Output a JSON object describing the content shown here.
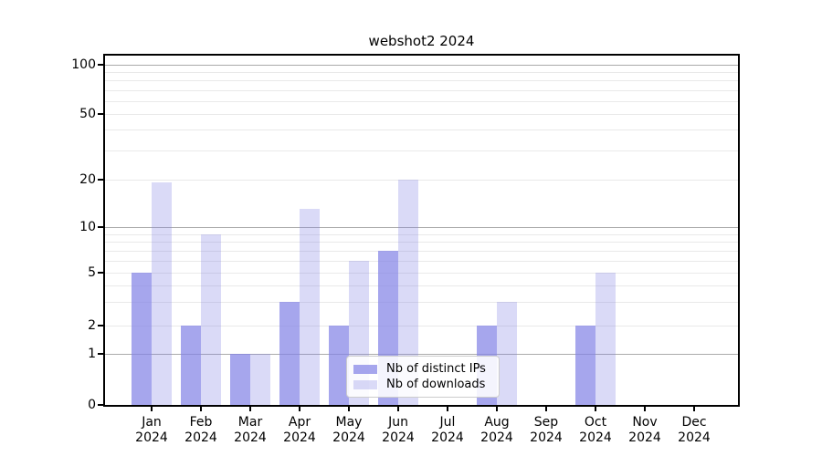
{
  "chart_data": {
    "type": "bar",
    "title": "webshot2 2024",
    "categories": [
      "Jan",
      "Feb",
      "Mar",
      "Apr",
      "May",
      "Jun",
      "Jul",
      "Aug",
      "Sep",
      "Oct",
      "Nov",
      "Dec"
    ],
    "tick_year": "2024",
    "series": [
      {
        "name": "Nb of distinct IPs",
        "color": "rgba(131,131,230,0.72)",
        "values": [
          5,
          2,
          1,
          3,
          2,
          7,
          0,
          2,
          0,
          2,
          0,
          0
        ]
      },
      {
        "name": "Nb of downloads",
        "color": "rgba(131,131,230,0.30)",
        "values": [
          19,
          9,
          1,
          13,
          6,
          20,
          0,
          3,
          0,
          5,
          0,
          0
        ]
      }
    ],
    "xlabel": "",
    "ylabel": "",
    "yticks": [
      0,
      1,
      2,
      5,
      10,
      20,
      50,
      100
    ],
    "ylim": [
      0,
      100
    ],
    "yscale": "symlog-like",
    "grid": true,
    "major_gridlines": [
      1,
      10,
      100
    ],
    "minor_gridlines": [
      2,
      3,
      4,
      5,
      6,
      7,
      8,
      9,
      20,
      30,
      40,
      50,
      60,
      70,
      80,
      90
    ],
    "legend_position": "inside lower-center",
    "colors": {
      "major_grid": "#aaaaaa",
      "minor_grid": "#e9e9e9",
      "spine": "#000000",
      "background": "#ffffff"
    }
  }
}
